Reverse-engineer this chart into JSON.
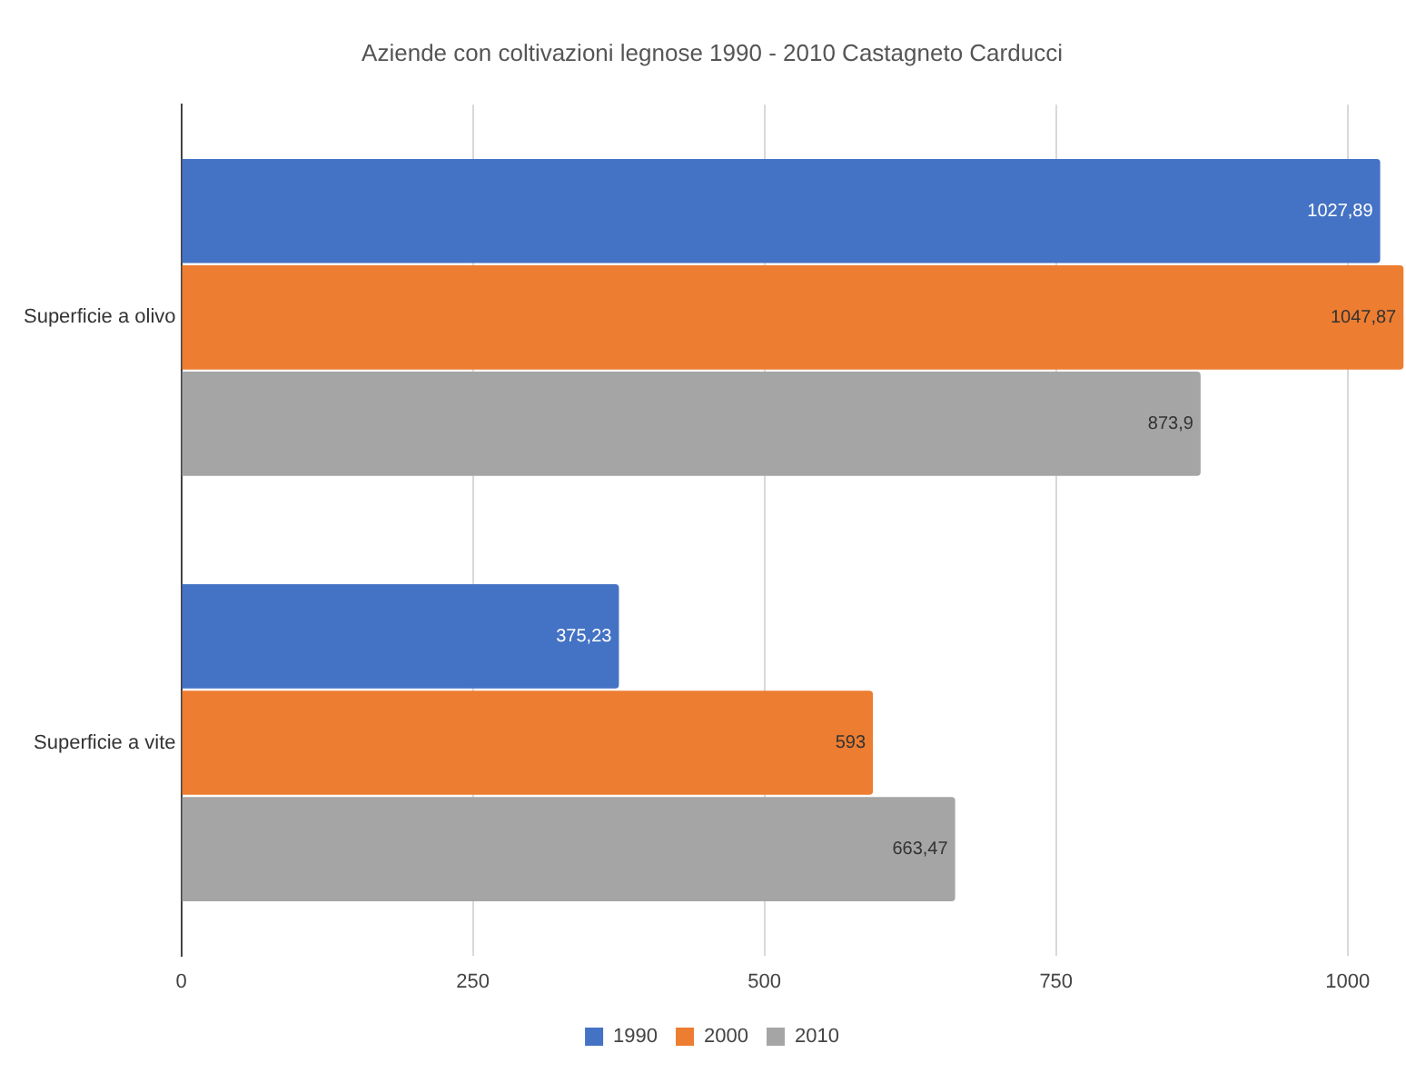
{
  "chart_data": {
    "type": "bar",
    "orientation": "horizontal",
    "title": "Aziende con coltivazioni legnose 1990 - 2010 Castagneto Carducci",
    "categories": [
      "Superficie a olivo",
      "Superficie a vite"
    ],
    "series": [
      {
        "name": "1990",
        "color": "#4472c4",
        "values": [
          1027.89,
          375.23
        ],
        "value_labels": [
          "1027,89",
          "375,23"
        ]
      },
      {
        "name": "2000",
        "color": "#ed7d31",
        "values": [
          1047.87,
          593
        ],
        "value_labels": [
          "1047,87",
          "593"
        ]
      },
      {
        "name": "2010",
        "color": "#a5a5a5",
        "values": [
          873.9,
          663.47
        ],
        "value_labels": [
          "873,9",
          "663,47"
        ]
      }
    ],
    "xlim": [
      0,
      1050
    ],
    "xticks": [
      0,
      250,
      500,
      750,
      1000
    ],
    "grid": "x",
    "legend": "bottom"
  }
}
